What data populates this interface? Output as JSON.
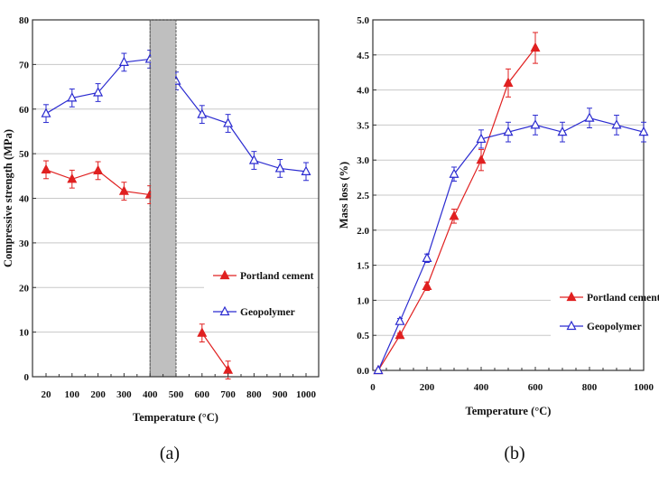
{
  "chart_data": [
    {
      "type": "line",
      "panel_label": "(a)",
      "xlabel": "Temperature (°C)",
      "ylabel": "Compressive strength (MPa)",
      "categories": [
        "20",
        "100",
        "200",
        "300",
        "400",
        "500",
        "600",
        "700",
        "800",
        "900",
        "1000"
      ],
      "ylim": [
        0,
        80
      ],
      "yticks": [
        "0",
        "10",
        "20",
        "30",
        "40",
        "50",
        "60",
        "70",
        "80"
      ],
      "grid": true,
      "shaded_region": [
        "400",
        "500"
      ],
      "legend_position": "right-middle",
      "series": [
        {
          "name": "Portland cement",
          "color": "#e02020",
          "marker": "filled-triangle",
          "values": [
            46.4,
            44.3,
            46.2,
            41.6,
            40.8,
            null,
            9.8,
            1.5,
            null,
            null,
            null
          ],
          "error": 2
        },
        {
          "name": "Geopolymer",
          "color": "#2a2ad0",
          "marker": "open-triangle",
          "values": [
            59,
            62.5,
            63.7,
            70.5,
            71.2,
            66.3,
            58.8,
            56.8,
            48.5,
            46.7,
            46
          ],
          "error": 2
        }
      ]
    },
    {
      "type": "line",
      "panel_label": "(b)",
      "xlabel": "Temperature (°C)",
      "ylabel": "Mass loss (%)",
      "xlim": [
        0,
        1000
      ],
      "xticks": [
        "0",
        "200",
        "400",
        "600",
        "800",
        "1000"
      ],
      "ylim": [
        0,
        5
      ],
      "yticks": [
        "0.0",
        "0.5",
        "1.0",
        "1.5",
        "2.0",
        "2.5",
        "3.0",
        "3.5",
        "4.0",
        "4.5",
        "5.0"
      ],
      "grid": true,
      "legend_position": "right-lower",
      "series": [
        {
          "name": "Portland cement",
          "color": "#e02020",
          "marker": "filled-triangle",
          "x": [
            20,
            100,
            200,
            300,
            400,
            500,
            600
          ],
          "values": [
            0,
            0.5,
            1.2,
            2.2,
            3.0,
            4.1,
            4.6
          ],
          "error": [
            0,
            0.03,
            0.06,
            0.1,
            0.15,
            0.2,
            0.22
          ]
        },
        {
          "name": "Geopolymer",
          "color": "#2a2ad0",
          "marker": "open-triangle",
          "x": [
            20,
            100,
            200,
            300,
            400,
            500,
            600,
            700,
            800,
            900,
            1000
          ],
          "values": [
            0,
            0.7,
            1.6,
            2.8,
            3.3,
            3.4,
            3.5,
            3.4,
            3.6,
            3.5,
            3.4
          ],
          "error": [
            0,
            0.04,
            0.06,
            0.1,
            0.13,
            0.14,
            0.14,
            0.14,
            0.14,
            0.14,
            0.14
          ]
        }
      ]
    }
  ]
}
